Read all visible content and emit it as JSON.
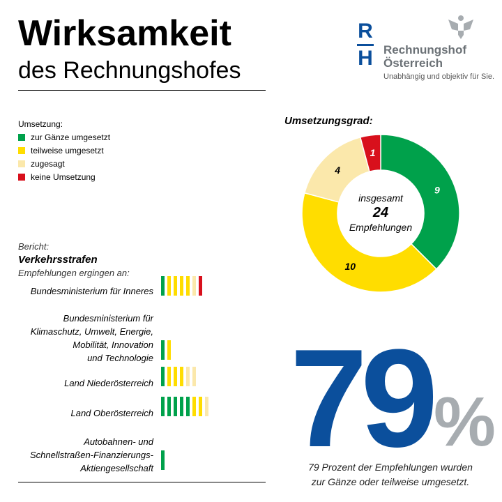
{
  "title": {
    "line1": "Wirksamkeit",
    "line2": "des Rechnungshofes"
  },
  "logo": {
    "mark_top": "R",
    "mark_bottom": "H",
    "name1": "Rechnungshof",
    "name2": "Österreich",
    "tagline": "Unabhängig und objektiv für Sie."
  },
  "colors": {
    "green": "#00a14b",
    "yellow": "#ffdd00",
    "light": "#fbe8ab",
    "red": "#d8101c",
    "blue": "#0b4f9c",
    "gray": "#a7acb0"
  },
  "legend": {
    "title": "Umsetzung:",
    "items": [
      {
        "label": "zur Gänze umgesetzt",
        "color": "#00a14b"
      },
      {
        "label": "teilweise umgesetzt",
        "color": "#ffdd00"
      },
      {
        "label": "zugesagt",
        "color": "#fbe8ab"
      },
      {
        "label": "keine Umsetzung",
        "color": "#d8101c"
      }
    ]
  },
  "report": {
    "label": "Bericht:",
    "name": "Verkehrsstrafen",
    "recipients_label": "Empfehlungen ergingen an:",
    "recipients": [
      {
        "name": "Bundesministerium für Inneres",
        "green": 1,
        "yellow": 4,
        "light": 1,
        "red": 1
      },
      {
        "name": "Bundesministerium für Klimaschutz, Umwelt, Energie, Mobilität, Innovation und Technologie",
        "green": 1,
        "yellow": 1,
        "light": 0,
        "red": 0
      },
      {
        "name": "Land Niederösterreich",
        "green": 1,
        "yellow": 3,
        "light": 2,
        "red": 0
      },
      {
        "name": "Land Oberösterreich",
        "green": 5,
        "yellow": 2,
        "light": 1,
        "red": 0
      },
      {
        "name": "Autobahnen- und Schnellstraßen-Finanzierungs-Aktiengesellschaft",
        "green": 1,
        "yellow": 0,
        "light": 0,
        "red": 0
      }
    ]
  },
  "chart_data": {
    "type": "pie",
    "title": "Umsetzungsgrad:",
    "categories": [
      "zur Gänze umgesetzt",
      "teilweise umgesetzt",
      "zugesagt",
      "keine Umsetzung"
    ],
    "values": [
      9,
      10,
      4,
      1
    ],
    "colors": [
      "#00a14b",
      "#ffdd00",
      "#fbe8ab",
      "#d8101c"
    ],
    "center": {
      "line1": "insgesamt",
      "total": "24",
      "line2": "Empfehlungen"
    }
  },
  "summary": {
    "big": "79",
    "percent_sign": "%",
    "caption1": "79 Prozent der Empfehlungen wurden",
    "caption2": "zur Gänze oder teilweise umgesetzt."
  }
}
